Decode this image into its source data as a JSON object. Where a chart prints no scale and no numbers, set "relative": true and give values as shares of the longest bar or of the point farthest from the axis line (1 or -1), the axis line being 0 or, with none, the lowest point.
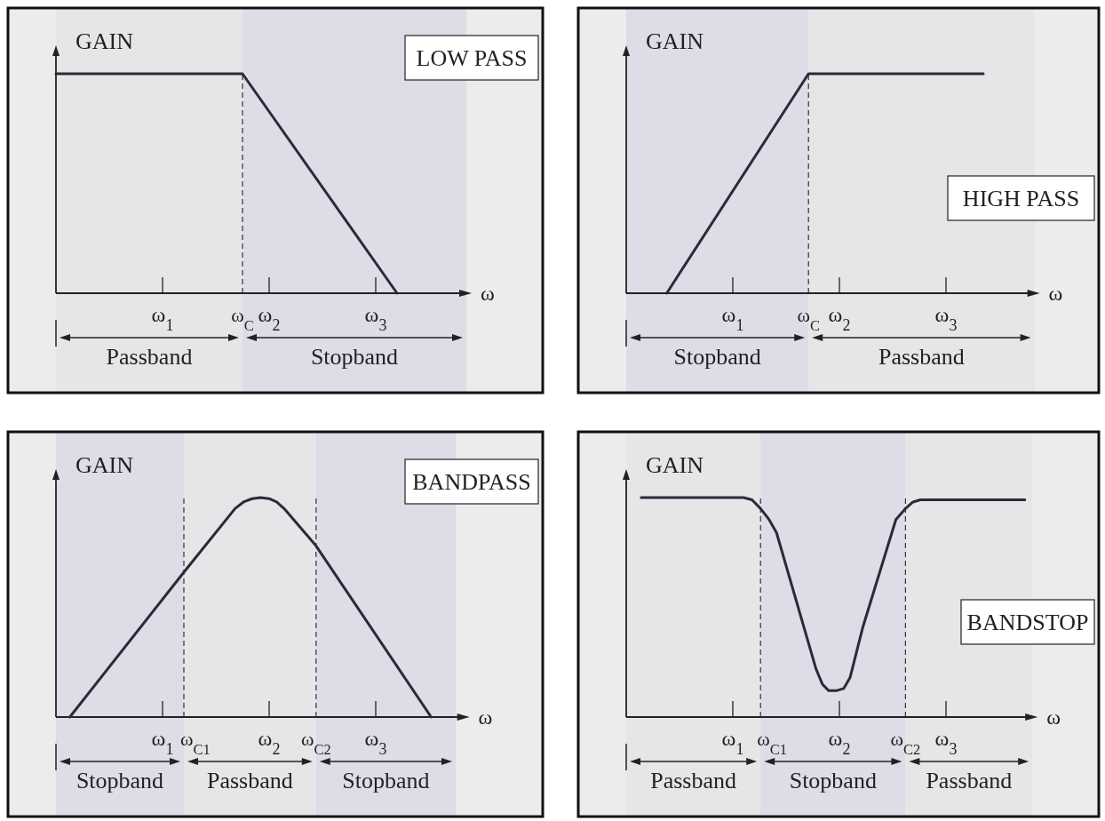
{
  "chart_data": [
    {
      "type": "line",
      "title": "LOW PASS",
      "ylabel": "GAIN",
      "xlabel": "ω",
      "relative": true,
      "xlim": [
        0,
        3.85
      ],
      "xticks": [
        {
          "value": 1,
          "label": "ω$_{1}$"
        },
        {
          "value": 2,
          "label": "ω$_{2}$"
        },
        {
          "value": 3,
          "label": "ω$_{3}$"
        }
      ],
      "series": [
        {
          "color": "#2a2a38",
          "x": [
            0,
            1.75,
            3.2
          ],
          "values": [
            1,
            1,
            0
          ]
        }
      ],
      "ref_lines": [
        {
          "axis": "x",
          "value": 1.75,
          "label": "ω$_{C}$",
          "line_style": "dashed"
        }
      ],
      "bands": [
        {
          "axis": "x",
          "from": 0,
          "to": 1.75,
          "label": "Passband",
          "color": "#e6e6e8"
        },
        {
          "axis": "x",
          "from": 1.75,
          "to": 3.85,
          "label": "Stopband",
          "color": "#dcdde7"
        }
      ]
    },
    {
      "type": "line",
      "title": "HIGH PASS",
      "ylabel": "GAIN",
      "xlabel": "ω",
      "relative": true,
      "xlim": [
        0,
        3.83
      ],
      "xticks": [
        {
          "value": 1,
          "label": "ω$_{1}$"
        },
        {
          "value": 2,
          "label": "ω$_{2}$"
        },
        {
          "value": 3,
          "label": "ω$_{3}$"
        }
      ],
      "series": [
        {
          "color": "#2a2a38",
          "x": [
            0.38,
            1.71,
            3.35
          ],
          "values": [
            0,
            1,
            1
          ]
        }
      ],
      "ref_lines": [
        {
          "axis": "x",
          "value": 1.71,
          "label": "ω$_{C}$",
          "line_style": "dashed"
        }
      ],
      "bands": [
        {
          "axis": "x",
          "from": 0,
          "to": 1.71,
          "label": "Stopband",
          "color": "#dcdde7"
        },
        {
          "axis": "x",
          "from": 1.71,
          "to": 3.83,
          "label": "Passband",
          "color": "#e6e6e8"
        }
      ]
    },
    {
      "type": "line",
      "title": "BANDPASS",
      "ylabel": "GAIN",
      "xlabel": "ω",
      "relative": true,
      "xlim": [
        0,
        3.83
      ],
      "xticks": [
        {
          "value": 1,
          "label": "ω$_{1}$"
        },
        {
          "value": 2,
          "label": "ω$_{2}$"
        },
        {
          "value": 3,
          "label": "ω$_{3}$"
        }
      ],
      "series": [
        {
          "color": "#2a2a38",
          "x": [
            0.13,
            1.2,
            1.68,
            1.76,
            1.84,
            1.92,
            2.0,
            2.07,
            2.14,
            2.44,
            3.52
          ],
          "values": [
            0,
            0.66,
            0.95,
            0.98,
            0.995,
            1,
            0.995,
            0.98,
            0.95,
            0.78,
            0
          ]
        }
      ],
      "ref_lines": [
        {
          "axis": "x",
          "value": 1.2,
          "label": "ω$_{C1}$",
          "line_style": "dashed"
        },
        {
          "axis": "x",
          "value": 2.44,
          "label": "ω$_{C2}$",
          "line_style": "dashed"
        }
      ],
      "bands": [
        {
          "axis": "x",
          "from": 0,
          "to": 1.2,
          "label": "Stopband",
          "color": "#dcdde7"
        },
        {
          "axis": "x",
          "from": 1.2,
          "to": 2.44,
          "label": "Passband",
          "color": "#e6e6e8"
        },
        {
          "axis": "x",
          "from": 2.44,
          "to": 3.75,
          "label": "Stopband",
          "color": "#dcdde7"
        }
      ]
    },
    {
      "type": "line",
      "title": "BANDSTOP",
      "ylabel": "GAIN",
      "xlabel": "ω",
      "relative": true,
      "xlim": [
        0,
        3.81
      ],
      "xticks": [
        {
          "value": 1,
          "label": "ω$_{1}$"
        },
        {
          "value": 2,
          "label": "ω$_{2}$"
        },
        {
          "value": 3,
          "label": "ω$_{3}$"
        }
      ],
      "series": [
        {
          "color": "#2a2a38",
          "x": [
            0.14,
            1.1,
            1.18,
            1.26,
            1.34,
            1.41,
            1.78,
            1.84,
            1.9,
            1.97,
            2.04,
            2.1,
            2.22,
            2.53,
            2.62,
            2.69,
            2.76,
            3.74
          ],
          "values": [
            1,
            1,
            0.99,
            0.95,
            0.9,
            0.84,
            0.22,
            0.15,
            0.12,
            0.12,
            0.13,
            0.18,
            0.41,
            0.9,
            0.95,
            0.98,
            0.99,
            0.99
          ]
        }
      ],
      "ref_lines": [
        {
          "axis": "x",
          "value": 1.26,
          "label": "ω$_{C1}$",
          "line_style": "dashed"
        },
        {
          "axis": "x",
          "value": 2.62,
          "label": "ω$_{C2}$",
          "line_style": "dashed"
        }
      ],
      "bands": [
        {
          "axis": "x",
          "from": 0,
          "to": 1.26,
          "label": "Passband",
          "color": "#e6e6e8"
        },
        {
          "axis": "x",
          "from": 1.26,
          "to": 2.62,
          "label": "Stopband",
          "color": "#dcdde7"
        },
        {
          "axis": "x",
          "from": 2.62,
          "to": 3.81,
          "label": "Passband",
          "color": "#e6e6e8"
        }
      ]
    }
  ]
}
